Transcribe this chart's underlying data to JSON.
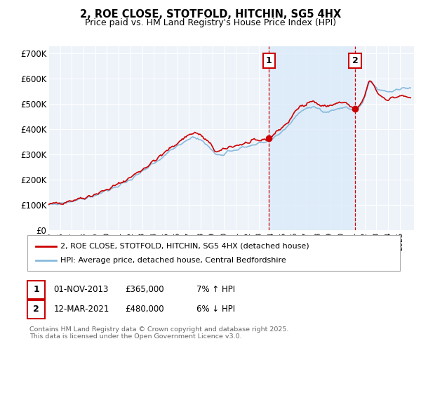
{
  "title": "2, ROE CLOSE, STOTFOLD, HITCHIN, SG5 4HX",
  "subtitle": "Price paid vs. HM Land Registry's House Price Index (HPI)",
  "ylabel_ticks": [
    "£0",
    "£100K",
    "£200K",
    "£300K",
    "£400K",
    "£500K",
    "£600K",
    "£700K"
  ],
  "ytick_values": [
    0,
    100000,
    200000,
    300000,
    400000,
    500000,
    600000,
    700000
  ],
  "ylim": [
    0,
    730000
  ],
  "xlim_start": 1995.0,
  "xlim_end": 2026.2,
  "line1_color": "#cc0000",
  "line2_color": "#88bbdd",
  "shade_color": "#d8e8f8",
  "vline_color": "#cc0000",
  "vline1_x": 2013.83,
  "vline2_x": 2021.18,
  "marker1_x": 2013.83,
  "marker1_y": 365000,
  "marker2_x": 2021.18,
  "marker2_y": 480000,
  "legend_label1": "2, ROE CLOSE, STOTFOLD, HITCHIN, SG5 4HX (detached house)",
  "legend_label2": "HPI: Average price, detached house, Central Bedfordshire",
  "annotation1_label": "1",
  "annotation2_label": "2",
  "ann1_date": "01-NOV-2013",
  "ann1_price": "£365,000",
  "ann1_hpi": "7% ↑ HPI",
  "ann2_date": "12-MAR-2021",
  "ann2_price": "£480,000",
  "ann2_hpi": "6% ↓ HPI",
  "footer": "Contains HM Land Registry data © Crown copyright and database right 2025.\nThis data is licensed under the Open Government Licence v3.0.",
  "background_color": "#ffffff",
  "plot_bg_color": "#eef3fa",
  "grid_color": "#ffffff"
}
